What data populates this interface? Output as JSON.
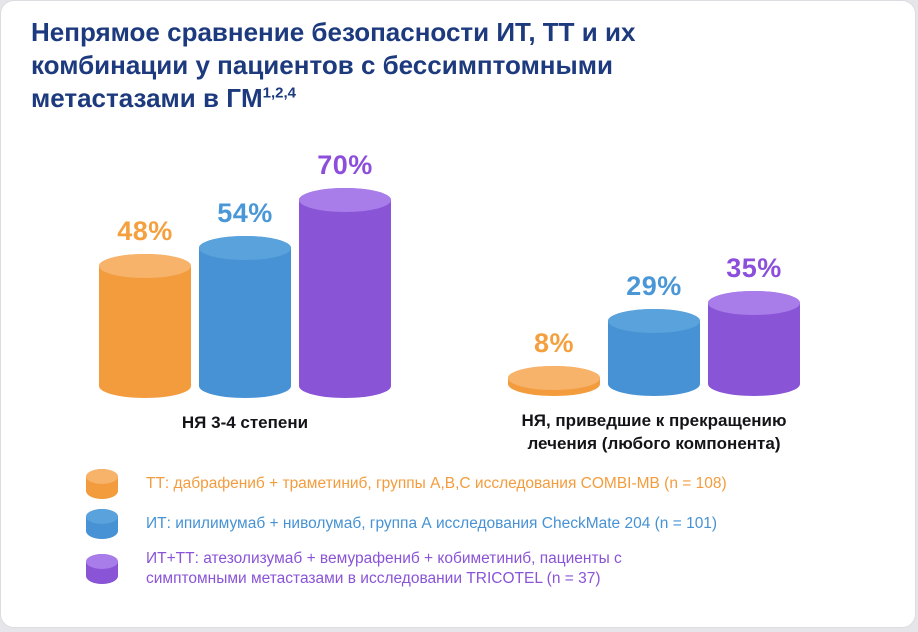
{
  "card": {
    "title_lines": [
      "Непрямое сравнение безопасности ИТ, ТТ и их",
      "комбинации у пациентов с бессимптомными",
      "метастазами в ГМ"
    ],
    "title_superscript": "1,2,4"
  },
  "colors": {
    "title": "#1c3a7d",
    "caption": "#141418",
    "card_background": "#ffffff",
    "page_background": "#e6e6ea"
  },
  "chart_data": {
    "type": "bar",
    "unit": "%",
    "value_suffix": "%",
    "series": [
      "ТТ",
      "ИТ",
      "ИТ+ТТ"
    ],
    "series_colors": {
      "ТТ": {
        "body": "#F39C3E",
        "top": "#F7B36A",
        "label": "#F5A03F"
      },
      "ИТ": {
        "body": "#4692D4",
        "top": "#5AA2DC",
        "label": "#4A97D8"
      },
      "ИТ+ТТ": {
        "body": "#8A54D7",
        "top": "#A87DE9",
        "label": "#8C4FDC"
      }
    },
    "groups": [
      {
        "caption_lines": [
          "НЯ 3-4 степени"
        ],
        "values": [
          48,
          54,
          70
        ]
      },
      {
        "caption_lines": [
          "НЯ, приведшие к прекращению",
          "лечения (любого компонента)"
        ],
        "values": [
          8,
          29,
          35
        ]
      }
    ],
    "ylim": [
      0,
      100
    ],
    "grid": false,
    "legend_position": "bottom"
  },
  "legend": {
    "items": [
      {
        "series": "ТТ",
        "lines": [
          "ТТ: дабрафениб + траметиниб, группы А,В,С исследования COMBI-MB (n = 108)"
        ]
      },
      {
        "series": "ИТ",
        "lines": [
          "ИТ: ипилимумаб + ниволумаб, группа А исследования CheckMate 204 (n = 101)"
        ]
      },
      {
        "series": "ИТ+ТТ",
        "lines": [
          "ИТ+ТТ: атезолизумаб + вемурафениб + кобиметиниб, пациенты с",
          "симптомными метастазами в исследовании TRICOTEL (n = 37)"
        ]
      }
    ]
  }
}
